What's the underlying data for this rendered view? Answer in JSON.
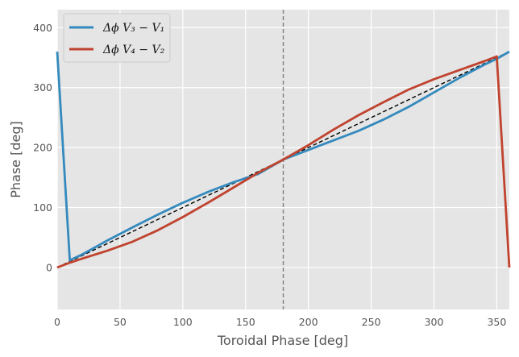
{
  "chart_data": {
    "type": "line",
    "title": "",
    "xlabel": "Toroidal Phase [deg]",
    "ylabel": "Phase [deg]",
    "xlim": [
      0,
      360
    ],
    "ylim": [
      -70,
      430
    ],
    "xticks": [
      0,
      50,
      100,
      150,
      200,
      250,
      300,
      350
    ],
    "yticks": [
      0,
      100,
      200,
      300,
      400
    ],
    "xtick_labels": [
      "0",
      "50",
      "100",
      "150",
      "200",
      "250",
      "300",
      "350"
    ],
    "ytick_labels": [
      "0",
      "100",
      "200",
      "300",
      "400"
    ],
    "grid": true,
    "legend_position": "top-left",
    "reference_lines": {
      "diagonal": {
        "from": [
          0,
          0
        ],
        "to": [
          360,
          360
        ],
        "style": "dashed",
        "color": "#000000"
      },
      "vertical": {
        "x": 180,
        "style": "dashed",
        "color": "#808080"
      }
    },
    "series": [
      {
        "name": "Δϕ V₃ − V₁",
        "color": "#348ABD",
        "x": [
          0,
          10,
          20,
          40,
          60,
          80,
          100,
          120,
          140,
          160,
          180,
          200,
          220,
          240,
          260,
          280,
          300,
          320,
          340,
          350,
          360
        ],
        "y": [
          360,
          12,
          22,
          45,
          67,
          88,
          108,
          126,
          142,
          156,
          180,
          196,
          212,
          228,
          247,
          268,
          292,
          316,
          338,
          348,
          360
        ]
      },
      {
        "name": "Δϕ V₄ − V₂",
        "color": "#C0432F",
        "x": [
          0,
          10,
          20,
          40,
          60,
          80,
          100,
          120,
          140,
          160,
          180,
          200,
          220,
          240,
          260,
          280,
          300,
          320,
          340,
          350,
          360
        ],
        "y": [
          0,
          8,
          15,
          28,
          43,
          62,
          84,
          108,
          133,
          158,
          180,
          204,
          230,
          254,
          276,
          297,
          314,
          329,
          344,
          352,
          0
        ]
      }
    ]
  }
}
